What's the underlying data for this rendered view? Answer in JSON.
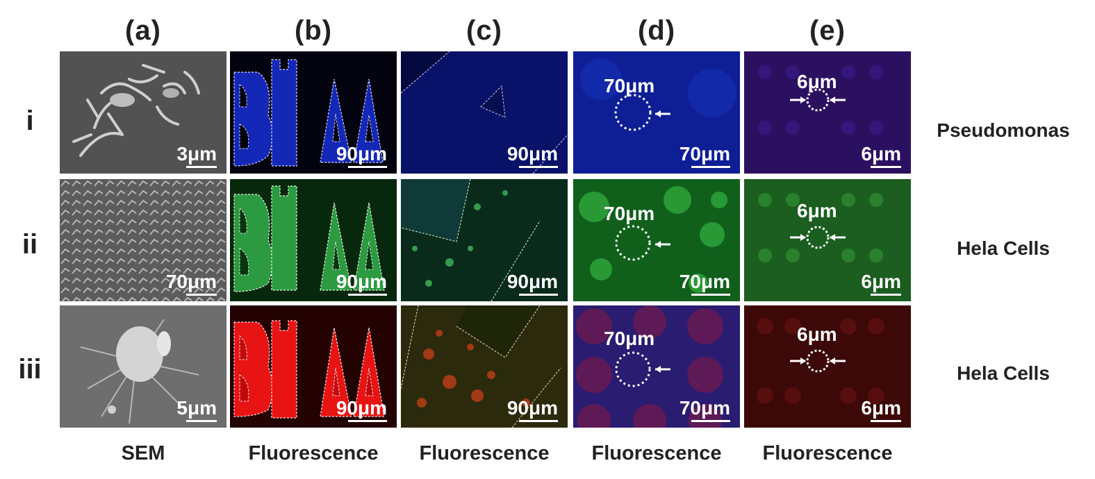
{
  "figure": {
    "columns": [
      {
        "label": "(a)",
        "modality": "SEM"
      },
      {
        "label": "(b)",
        "modality": "Fluorescence"
      },
      {
        "label": "(c)",
        "modality": "Fluorescence"
      },
      {
        "label": "(d)",
        "modality": "Fluorescence"
      },
      {
        "label": "(e)",
        "modality": "Fluorescence"
      }
    ],
    "rows": [
      {
        "label": "i",
        "organism": "Pseudomonas"
      },
      {
        "label": "ii",
        "organism": "Hela Cells"
      },
      {
        "label": "iii",
        "organism": "Hela Cells"
      }
    ],
    "scale_bars": {
      "a": [
        "3μm",
        "70μm",
        "5μm"
      ],
      "b": [
        "90μm",
        "90μm",
        "90μm"
      ],
      "c": [
        "90μm",
        "90μm",
        "90μm"
      ],
      "d": [
        "70μm",
        "70μm",
        "70μm"
      ],
      "e": [
        "6μm",
        "6μm",
        "6μm"
      ]
    },
    "feature_labels": {
      "d": [
        "70μm",
        "70μm",
        "70μm"
      ],
      "e": [
        "6μm",
        "6μm",
        "6μm"
      ]
    },
    "colors": {
      "blue_channel": "#1a2fb0",
      "green_channel": "#2fa82f",
      "red_channel": "#c81010",
      "sem_gray": "#6e6e6e"
    }
  }
}
